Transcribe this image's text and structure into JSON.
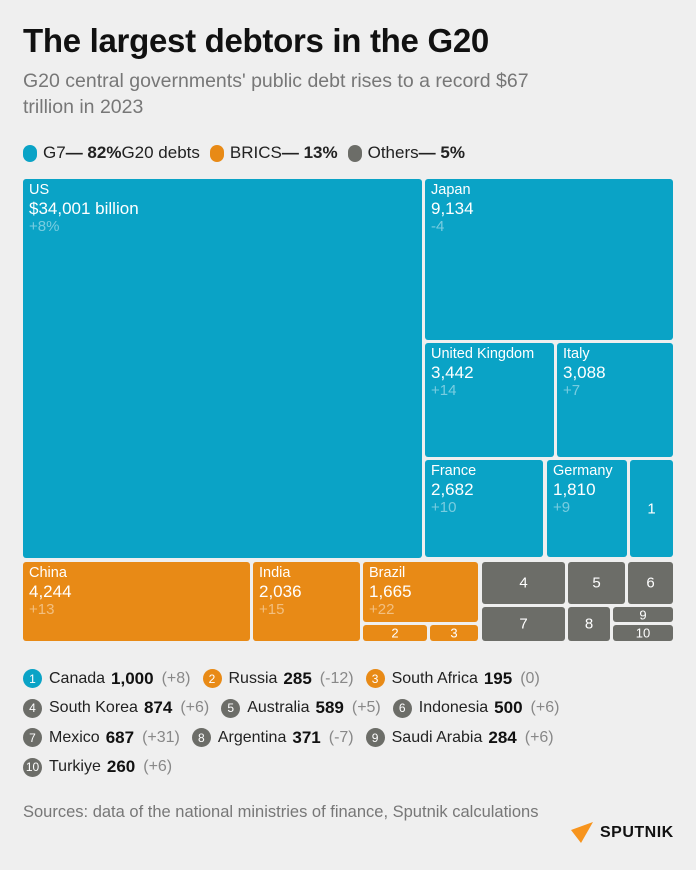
{
  "title": "The largest debtors in the G20",
  "subtitle": "G20 central governments' public debt rises to a record $67 trillion in 2023",
  "colors": {
    "G7": "#0aa3c6",
    "BRICS": "#e88a16",
    "Others": "#6c6d68"
  },
  "legend": [
    {
      "group": "G7",
      "label": "G7",
      "share": "— 82%",
      "suffix": "G20 debts"
    },
    {
      "group": "BRICS",
      "label": "BRICS",
      "share": "— 13%",
      "suffix": ""
    },
    {
      "group": "Others",
      "label": "Others",
      "share": "— 5%",
      "suffix": ""
    }
  ],
  "chart_data": {
    "type": "treemap",
    "title": "The largest debtors in the G20",
    "unit": "$ billion",
    "change_unit": "% change",
    "items": [
      {
        "name": "US",
        "group": "G7",
        "value": 34001,
        "value_label": "$34,001 billion",
        "change": "+8%",
        "labelled": true
      },
      {
        "name": "Japan",
        "group": "G7",
        "value": 9134,
        "value_label": "9,134",
        "change": "-4",
        "labelled": true
      },
      {
        "name": "United Kingdom",
        "group": "G7",
        "value": 3442,
        "value_label": "3,442",
        "change": "+14",
        "labelled": true
      },
      {
        "name": "Italy",
        "group": "G7",
        "value": 3088,
        "value_label": "3,088",
        "change": "+7",
        "labelled": true
      },
      {
        "name": "France",
        "group": "G7",
        "value": 2682,
        "value_label": "2,682",
        "change": "+10",
        "labelled": true
      },
      {
        "name": "Germany",
        "group": "G7",
        "value": 1810,
        "value_label": "1,810",
        "change": "+9",
        "labelled": true
      },
      {
        "name": "Canada",
        "group": "G7",
        "value": 1000,
        "value_label": "1,000",
        "change": "+8",
        "index": "1"
      },
      {
        "name": "China",
        "group": "BRICS",
        "value": 4244,
        "value_label": "4,244",
        "change": "+13",
        "labelled": true
      },
      {
        "name": "India",
        "group": "BRICS",
        "value": 2036,
        "value_label": "2,036",
        "change": "+15",
        "labelled": true
      },
      {
        "name": "Brazil",
        "group": "BRICS",
        "value": 1665,
        "value_label": "1,665",
        "change": "+22",
        "labelled": true
      },
      {
        "name": "Russia",
        "group": "BRICS",
        "value": 285,
        "value_label": "285",
        "change": "-12",
        "index": "2"
      },
      {
        "name": "South Africa",
        "group": "BRICS",
        "value": 195,
        "value_label": "195",
        "change": "0",
        "index": "3"
      },
      {
        "name": "South Korea",
        "group": "Others",
        "value": 874,
        "value_label": "874",
        "change": "+6",
        "index": "4"
      },
      {
        "name": "Australia",
        "group": "Others",
        "value": 589,
        "value_label": "589",
        "change": "+5",
        "index": "5"
      },
      {
        "name": "Indonesia",
        "group": "Others",
        "value": 500,
        "value_label": "500",
        "change": "+6",
        "index": "6"
      },
      {
        "name": "Mexico",
        "group": "Others",
        "value": 687,
        "value_label": "687",
        "change": "+31",
        "index": "7"
      },
      {
        "name": "Argentina",
        "group": "Others",
        "value": 371,
        "value_label": "371",
        "change": "-7",
        "index": "8"
      },
      {
        "name": "Saudi Arabia",
        "group": "Others",
        "value": 284,
        "value_label": "284",
        "change": "+6",
        "index": "9"
      },
      {
        "name": "Turkiye",
        "group": "Others",
        "value": 260,
        "value_label": "260",
        "change": "+6",
        "index": "10"
      }
    ]
  },
  "notes_rows": [
    [
      {
        "index": "1",
        "group": "G7",
        "name": "Canada",
        "value": "1,000",
        "change": "(+8)"
      },
      {
        "index": "2",
        "group": "BRICS",
        "name": "Russia",
        "value": "285",
        "change": "(-12)"
      },
      {
        "index": "3",
        "group": "BRICS",
        "name": "South Africa",
        "value": "195",
        "change": "(0)"
      }
    ],
    [
      {
        "index": "4",
        "group": "Others",
        "name": "South Korea",
        "value": "874",
        "change": "(+6)"
      },
      {
        "index": "5",
        "group": "Others",
        "name": "Australia",
        "value": "589",
        "change": "(+5)"
      },
      {
        "index": "6",
        "group": "Others",
        "name": "Indonesia",
        "value": "500",
        "change": "(+6)"
      }
    ],
    [
      {
        "index": "7",
        "group": "Others",
        "name": "Mexico",
        "value": "687",
        "change": "(+31)"
      },
      {
        "index": "8",
        "group": "Others",
        "name": "Argentina",
        "value": "371",
        "change": "(-7)"
      },
      {
        "index": "9",
        "group": "Others",
        "name": "Saudi Arabia",
        "value": "284",
        "change": "(+6)"
      }
    ],
    [
      {
        "index": "10",
        "group": "Others",
        "name": "Turkiye",
        "value": "260",
        "change": "(+6)"
      }
    ]
  ],
  "sources": "Sources: data of the national ministries of finance, Sputnik calculations",
  "logo": {
    "text": "SPUTNIK",
    "color": "#f7941d"
  }
}
